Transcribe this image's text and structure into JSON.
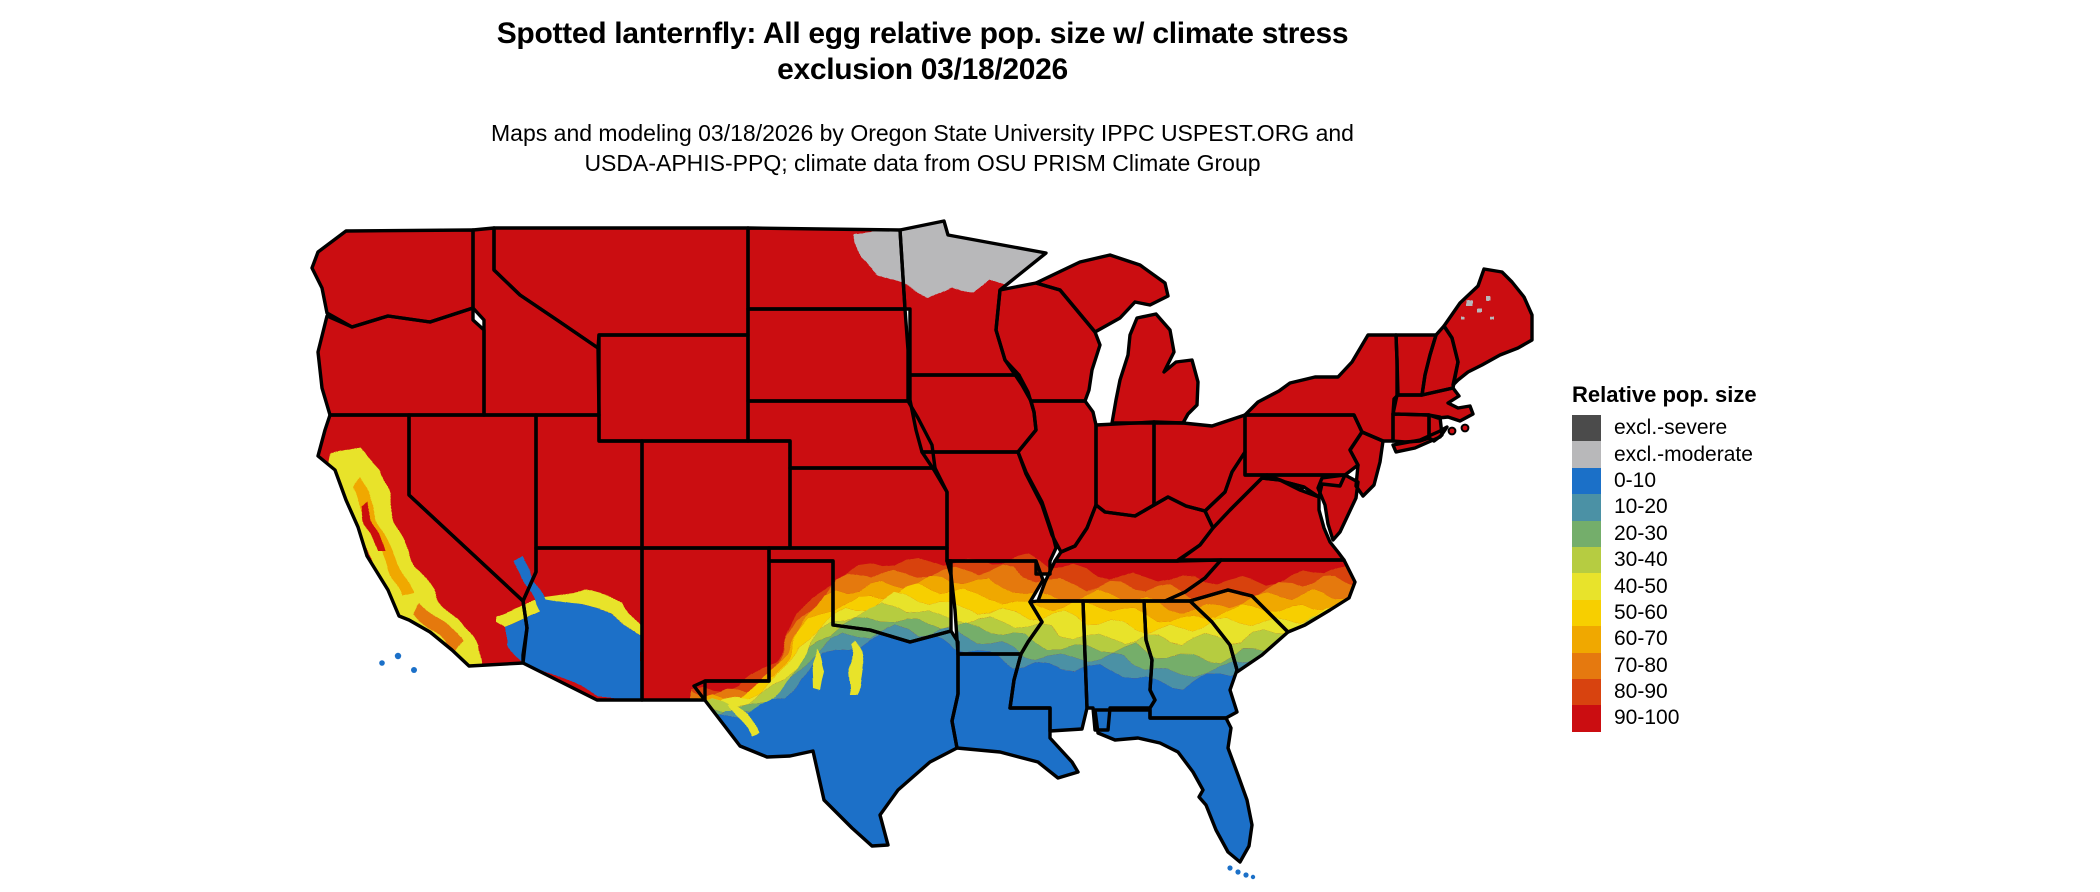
{
  "title": {
    "line1": "Spotted lanternfly: All egg relative pop. size w/ climate stress",
    "line2": "exclusion 03/18/2026"
  },
  "subtitle": {
    "line1": "Maps and modeling 03/18/2026 by Oregon State University IPPC USPEST.ORG and",
    "line2": "USDA-APHIS-PPQ; climate data from OSU PRISM Climate Group"
  },
  "legend": {
    "title": "Relative pop. size",
    "items": [
      {
        "label": "excl.-severe",
        "color": "#4b4b4b"
      },
      {
        "label": "excl.-moderate",
        "color": "#b8b8ba"
      },
      {
        "label": "0-10",
        "color": "#1b70c8"
      },
      {
        "label": "10-20",
        "color": "#4b91a5"
      },
      {
        "label": "20-30",
        "color": "#74ae6b"
      },
      {
        "label": "30-40",
        "color": "#b6cc41"
      },
      {
        "label": "40-50",
        "color": "#e8e32b"
      },
      {
        "label": "50-60",
        "color": "#f7cf00"
      },
      {
        "label": "60-70",
        "color": "#f0a800"
      },
      {
        "label": "70-80",
        "color": "#e5790f"
      },
      {
        "label": "80-90",
        "color": "#d8430f"
      },
      {
        "label": "90-100",
        "color": "#cb0d11"
      }
    ]
  },
  "map": {
    "type": "choropleth-raster",
    "area": "Contiguous United States with state borders",
    "border_color": "#000000",
    "water_background": "#ffffff",
    "region_values": [
      {
        "region": "Northern and western US (most states)",
        "class": "90-100"
      },
      {
        "region": "Northern Minnesota",
        "class": "excl.-moderate"
      },
      {
        "region": "Scattered pixels in northern Maine",
        "class": "excl.-moderate"
      },
      {
        "region": "Southern Texas, Gulf Coast, Louisiana, Florida, coastal Georgia/South Carolina",
        "class": "0-10"
      },
      {
        "region": "Band across northern Texas, Oklahoma Red River, Arkansas, Mississippi, Alabama, Georgia, Carolinas",
        "class": "10-80 gradient south to north"
      },
      {
        "region": "Southern Tennessee / North Carolina coast",
        "class": "70-90"
      },
      {
        "region": "California coast and Central Valley",
        "class": "mixed 0-80"
      },
      {
        "region": "Southwestern Arizona and southeastern California desert",
        "class": "0-10 with 40-60 fringe"
      }
    ]
  }
}
